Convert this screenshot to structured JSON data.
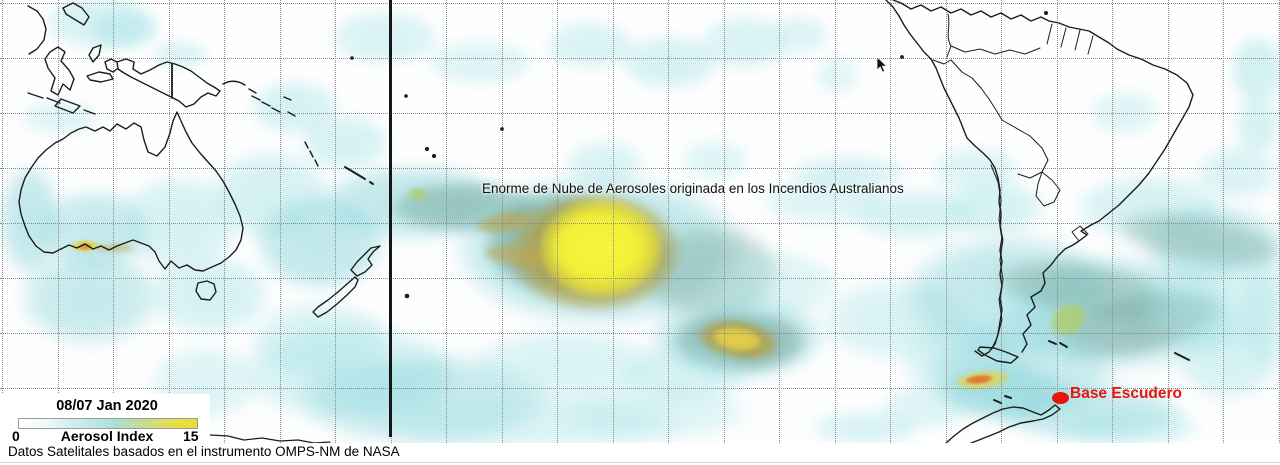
{
  "map": {
    "annotation": "Enorme de Nube de Aerosoles originada en los Incendios Australianos",
    "marker": {
      "label": "Base Escudero"
    }
  },
  "legend": {
    "date": "08/07 Jan 2020",
    "title": "Aerosol Index",
    "min": "0",
    "max": "15"
  },
  "caption": "Datos Satelitales basados en el instrumento OMPS-NM de NASA",
  "colors": {
    "yellow_plume": "#f0ec32",
    "olive_fringe": "#b29e3e",
    "teal_band": "#78aa9e",
    "cyan_haze": "#a8e4e8",
    "marker_red": "#e8150c",
    "grid": "#8a8a8a",
    "coastline": "#1c1c1c"
  }
}
